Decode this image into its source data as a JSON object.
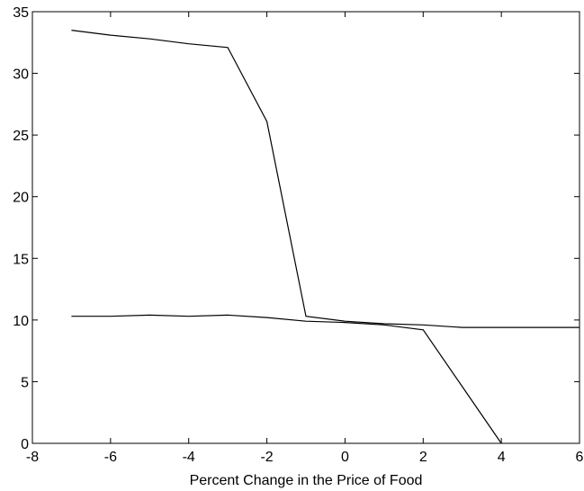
{
  "chart_data": {
    "type": "line",
    "title": "",
    "xlabel": "Percent Change in the Price of Food",
    "ylabel": "",
    "xlim": [
      -8,
      6
    ],
    "ylim": [
      0,
      35
    ],
    "x_ticks": [
      -8,
      -6,
      -4,
      -2,
      0,
      2,
      4,
      6
    ],
    "y_ticks": [
      0,
      5,
      10,
      15,
      20,
      25,
      30,
      35
    ],
    "x_tick_labels": [
      "-8",
      "-6",
      "-4",
      "-2",
      "0",
      "2",
      "4",
      "6"
    ],
    "y_tick_labels": [
      "0",
      "5",
      "10",
      "15",
      "20",
      "25",
      "30",
      "35"
    ],
    "grid": false,
    "legend": "none",
    "line_color": "#000000",
    "series": [
      {
        "x": [
          -7,
          -6,
          -5,
          -4,
          -3,
          -2,
          -1,
          0,
          1,
          2,
          3,
          4,
          5,
          6
        ],
        "values": [
          33.5,
          33.1,
          32.8,
          32.4,
          32.1,
          26.1,
          10.3,
          9.9,
          9.7,
          9.6,
          9.4,
          9.4,
          9.4,
          9.4
        ]
      },
      {
        "x": [
          -7,
          -6,
          -5,
          -4,
          -3,
          -2,
          -1,
          0,
          1,
          2,
          3,
          4
        ],
        "values": [
          10.3,
          10.3,
          10.4,
          10.3,
          10.4,
          10.2,
          9.9,
          9.8,
          9.6,
          9.2,
          4.6,
          0
        ]
      }
    ]
  }
}
